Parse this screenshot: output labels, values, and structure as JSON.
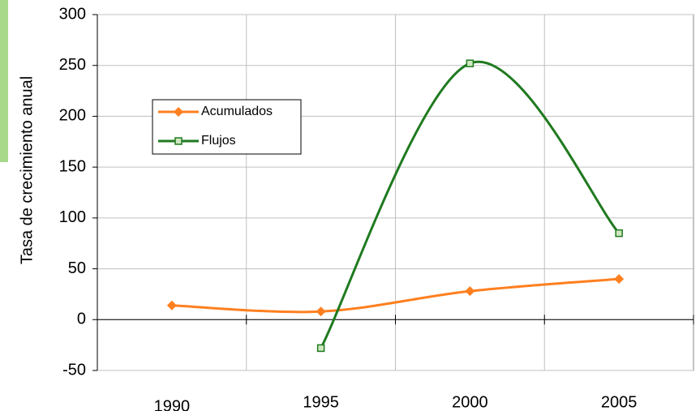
{
  "chart_data": {
    "type": "line",
    "y_label": "Tasa de crecimiento anual",
    "categories": [
      "1990",
      "1995",
      "2000",
      "2005"
    ],
    "series": [
      {
        "name": "Acumulados",
        "color": "#ff7f1f",
        "values": [
          14,
          8,
          28,
          40
        ]
      },
      {
        "name": "Flujos",
        "color": "#1f7a1f",
        "values": [
          null,
          -28,
          252,
          85
        ]
      }
    ],
    "ylim": [
      -50,
      300
    ],
    "yticks": [
      -50,
      0,
      50,
      100,
      150,
      200,
      250,
      300
    ],
    "grid": true,
    "smooth": true
  }
}
